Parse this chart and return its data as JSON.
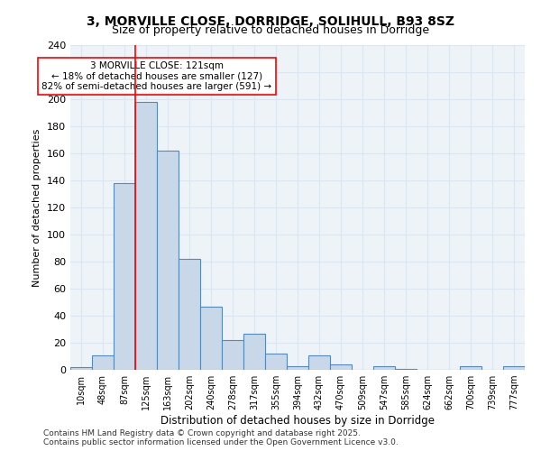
{
  "title1": "3, MORVILLE CLOSE, DORRIDGE, SOLIHULL, B93 8SZ",
  "title2": "Size of property relative to detached houses in Dorridge",
  "xlabel": "Distribution of detached houses by size in Dorridge",
  "ylabel": "Number of detached properties",
  "bin_labels": [
    "10sqm",
    "48sqm",
    "87sqm",
    "125sqm",
    "163sqm",
    "202sqm",
    "240sqm",
    "278sqm",
    "317sqm",
    "355sqm",
    "394sqm",
    "432sqm",
    "470sqm",
    "509sqm",
    "547sqm",
    "585sqm",
    "624sqm",
    "662sqm",
    "700sqm",
    "739sqm",
    "777sqm"
  ],
  "bar_values": [
    2,
    11,
    138,
    198,
    162,
    82,
    47,
    22,
    27,
    12,
    3,
    11,
    4,
    0,
    3,
    1,
    0,
    0,
    3,
    0,
    3
  ],
  "bar_color": "#c8d8e8",
  "bar_edge_color": "#5588bb",
  "grid_color": "#dce6f0",
  "background_color": "#eef3f8",
  "red_line_x": 3,
  "annotation_text": "3 MORVILLE CLOSE: 121sqm\n← 18% of detached houses are smaller (127)\n82% of semi-detached houses are larger (591) →",
  "annotation_box_color": "white",
  "annotation_box_edge": "red",
  "footer": "Contains HM Land Registry data © Crown copyright and database right 2025.\nContains public sector information licensed under the Open Government Licence v3.0.",
  "ylim": [
    0,
    240
  ]
}
